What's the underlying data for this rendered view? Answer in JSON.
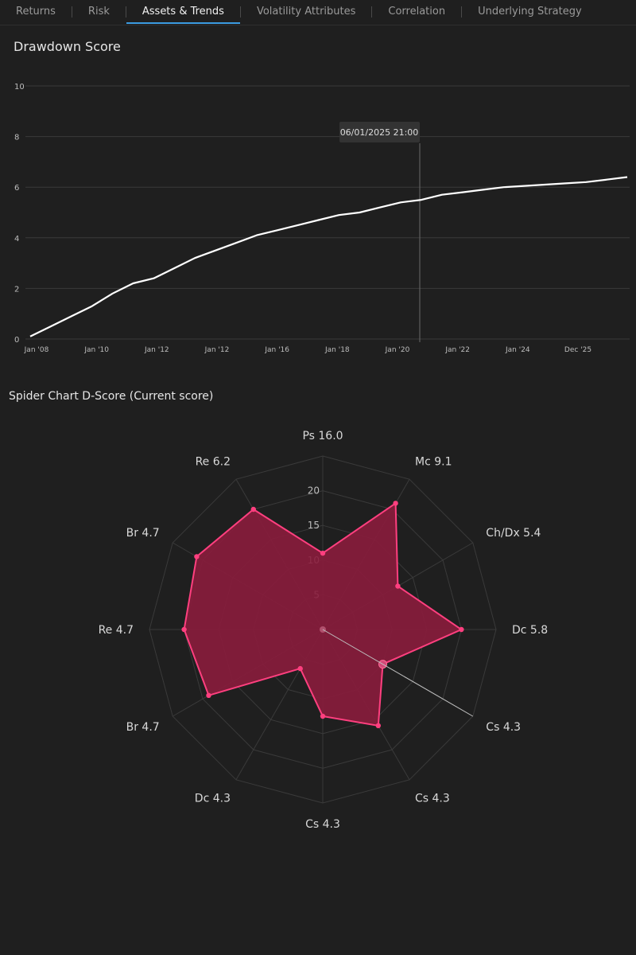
{
  "tabs": [
    {
      "label": "Returns",
      "active": false
    },
    {
      "label": "Risk",
      "active": false
    },
    {
      "label": "Assets & Trends",
      "active": true
    },
    {
      "label": "Volatility Attributes",
      "active": false
    },
    {
      "label": "Correlation",
      "active": false
    },
    {
      "label": "Underlying Strategy",
      "active": false
    }
  ],
  "colors": {
    "accent_tab": "#3b9be0",
    "line": "#ffffff",
    "radar_fill": "#8a1c3c",
    "radar_stroke": "#ff3f7f",
    "grid": "#3a3a3a"
  },
  "chart_data": [
    {
      "type": "line",
      "title": "Drawdown Score",
      "tooltip": "06/01/2025 21:00",
      "y_ticks": [
        0,
        2,
        4,
        6,
        8,
        10
      ],
      "x_ticks": [
        "Jan '08",
        "Jan '10",
        "Jan '12",
        "Jan '12",
        "Jan '16",
        "Jan '18",
        "Jan '20",
        "Jan '22",
        "Jan '24",
        "Dec '25"
      ],
      "ylim": [
        0,
        10
      ],
      "grid": true,
      "series": [
        {
          "values": [
            0.1,
            0.5,
            0.9,
            1.3,
            1.8,
            2.2,
            2.4,
            2.8,
            3.2,
            3.5,
            3.8,
            4.1,
            4.3,
            4.5,
            4.7,
            4.9,
            5.0,
            5.2,
            5.4,
            5.5,
            5.7,
            5.8,
            5.9,
            6.0,
            6.05,
            6.1,
            6.15,
            6.2,
            6.3,
            6.4
          ]
        }
      ]
    },
    {
      "type": "radar",
      "title": "Spider Chart D-Score (Current score)",
      "r_ticks": [
        5,
        10,
        15,
        20
      ],
      "rmax": 25,
      "axes": [
        "Ps 16.0",
        "Mc 9.1",
        "Ch/Dx 5.4",
        "Dc 5.8",
        "Cs 4.3",
        "Cs 4.3",
        "Cs 4.3",
        "Dc 4.3",
        "Br 4.7",
        "Re 4.7",
        "Br 4.7",
        "Re 6.2"
      ],
      "values": [
        11,
        21,
        12.5,
        20,
        10,
        16,
        12.5,
        6.5,
        19,
        20,
        21,
        20
      ]
    }
  ]
}
